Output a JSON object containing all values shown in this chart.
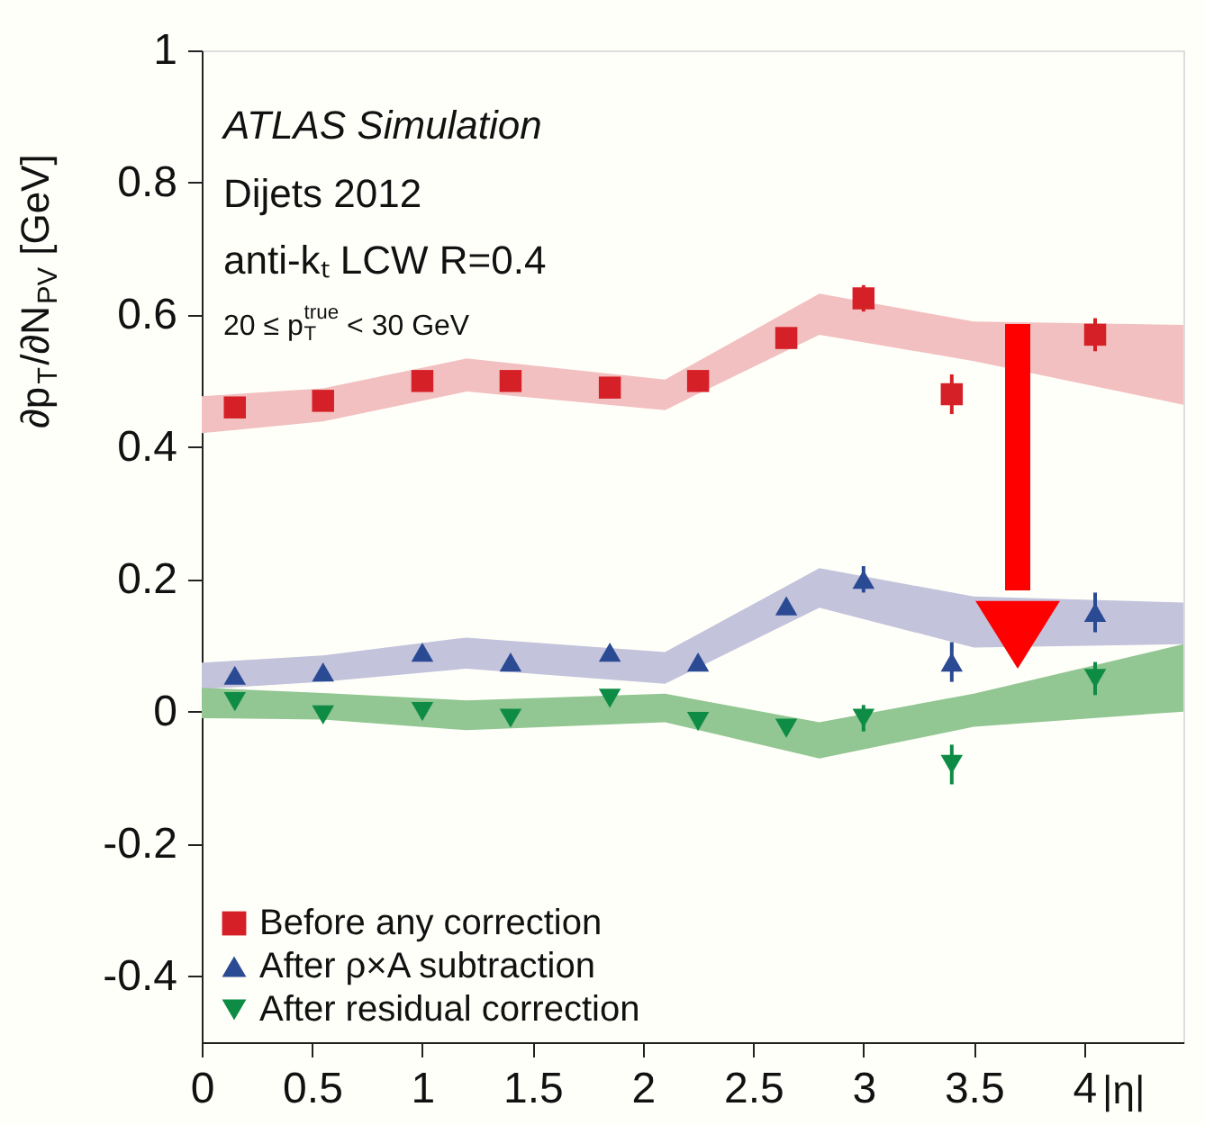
{
  "chart_data": {
    "type": "scatter",
    "xlabel": "|η|",
    "ylabel": "∂p$_{T}$/∂N$_{PV}$ [GeV]",
    "xlim": [
      0,
      4.45
    ],
    "ylim": [
      -0.5,
      1
    ],
    "xticks": [
      0,
      0.5,
      1,
      1.5,
      2,
      2.5,
      3,
      3.5,
      4
    ],
    "yticks": [
      -0.4,
      -0.2,
      0,
      0.2,
      0.4,
      0.6,
      0.8,
      1
    ],
    "legend": "bottom left",
    "grid": false,
    "annotations": [
      "ATLAS Simulation",
      "Dijets 2012",
      "anti-kₜ LCW R=0.4",
      "20 ≤ p$^{true}$$_{T}$ < 30 GeV"
    ],
    "series": [
      {
        "type": "line",
        "color": "#f2c0c0",
        "x": [
          0,
          0.55,
          1.2,
          2.1,
          2.8,
          3.5,
          4.45
        ],
        "values": [
          null,
          null,
          null,
          null,
          null,
          null,
          null
        ],
        "lower": [
          0.421,
          0.439,
          0.484,
          0.456,
          0.57,
          0.53,
          0.464
        ],
        "upper": [
          0.477,
          0.489,
          0.534,
          0.502,
          0.632,
          0.59,
          0.585
        ]
      },
      {
        "type": "line",
        "color": "#c3c3dc",
        "x": [
          0,
          0.55,
          1.2,
          2.1,
          2.8,
          3.5,
          4.45
        ],
        "values": [
          null,
          null,
          null,
          null,
          null,
          null,
          null
        ],
        "lower": [
          0.034,
          0.045,
          0.065,
          0.042,
          0.157,
          0.097,
          0.102
        ],
        "upper": [
          0.074,
          0.085,
          0.112,
          0.09,
          0.217,
          0.174,
          0.165
        ]
      },
      {
        "type": "line",
        "color": "#92c692",
        "x": [
          0,
          0.55,
          1.2,
          2.1,
          2.8,
          3.5,
          4.45
        ],
        "values": [
          null,
          null,
          null,
          null,
          null,
          null,
          null
        ],
        "lower": [
          -0.01,
          -0.012,
          -0.028,
          -0.016,
          -0.071,
          -0.023,
          0.0
        ],
        "upper": [
          0.036,
          0.028,
          0.017,
          0.027,
          -0.016,
          0.027,
          0.102
        ]
      },
      {
        "name": "Before any correction",
        "marker": "square",
        "color": "#d62027",
        "x": [
          0.15,
          0.55,
          1.0,
          1.4,
          1.85,
          2.25,
          2.65,
          3.0,
          3.4,
          4.05
        ],
        "values": [
          0.46,
          0.47,
          0.5,
          0.5,
          0.49,
          0.5,
          0.565,
          0.625,
          0.48,
          0.57
        ],
        "errors": [
          0.005,
          0.005,
          0.005,
          0.005,
          0.005,
          0.005,
          0.01,
          0.02,
          0.03,
          0.025
        ]
      },
      {
        "name": "After ρ×A subtraction",
        "marker": "triangle",
        "color": "#2b4a94",
        "x": [
          0.15,
          0.55,
          1.0,
          1.4,
          1.85,
          2.25,
          2.65,
          3.0,
          3.4,
          4.05
        ],
        "values": [
          0.055,
          0.06,
          0.09,
          0.075,
          0.09,
          0.075,
          0.16,
          0.2,
          0.075,
          0.15
        ],
        "errors": [
          0.005,
          0.005,
          0.005,
          0.005,
          0.005,
          0.005,
          0.01,
          0.02,
          0.03,
          0.03
        ]
      },
      {
        "name": "After residual correction",
        "marker": "triangle-down",
        "color": "#0e8c45",
        "x": [
          0.15,
          0.55,
          1.0,
          1.4,
          1.85,
          2.25,
          2.65,
          3.0,
          3.4,
          4.05
        ],
        "values": [
          0.015,
          -0.005,
          0.0,
          -0.01,
          0.02,
          -0.015,
          -0.025,
          -0.01,
          -0.08,
          0.05
        ],
        "errors": [
          0.005,
          0.005,
          0.005,
          0.01,
          0.005,
          0.005,
          0.01,
          0.02,
          0.03,
          0.025
        ]
      }
    ]
  }
}
